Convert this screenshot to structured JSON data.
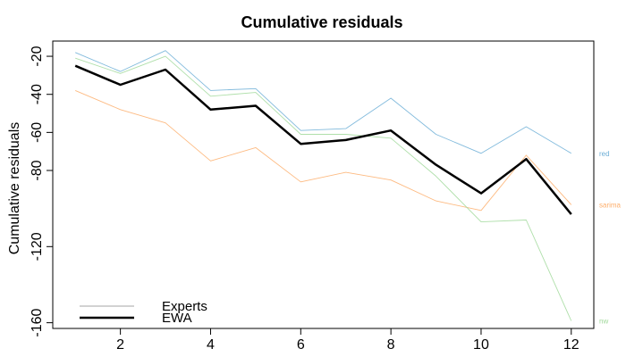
{
  "chart_data": {
    "type": "line",
    "title": "Cumulative residuals",
    "xlabel": "",
    "ylabel": "Cumulative residuals",
    "x": [
      1,
      2,
      3,
      4,
      5,
      6,
      7,
      8,
      9,
      10,
      11,
      12
    ],
    "xlim": [
      0.5,
      12.5
    ],
    "ylim": [
      -163,
      -12
    ],
    "x_ticks": [
      "2",
      "4",
      "6",
      "8",
      "10",
      "12"
    ],
    "y_ticks": [
      "-20",
      "-40",
      "-60",
      "-80",
      "-120",
      "-160"
    ],
    "grid": false,
    "legend": {
      "placement": "bottom-left",
      "entries": [
        "Experts",
        "EWA"
      ]
    },
    "series": [
      {
        "name": "red",
        "role": "expert",
        "color": "#6BAED6",
        "values": [
          -18,
          -28,
          -17,
          -38,
          -37,
          -59,
          -58,
          -42,
          -61,
          -71,
          -57,
          -71
        ]
      },
      {
        "name": "sarima",
        "role": "expert",
        "color": "#FDAE6B",
        "values": [
          -38,
          -48,
          -55,
          -75,
          -68,
          -86,
          -81,
          -85,
          -96,
          -101,
          -72,
          -98
        ]
      },
      {
        "name": "nw",
        "role": "expert",
        "color": "#A1D99B",
        "values": [
          -21,
          -29,
          -20,
          -41,
          -39,
          -61,
          -61,
          -63,
          -83,
          -107,
          -106,
          -159
        ]
      },
      {
        "name": "EWA",
        "role": "aggregate",
        "color": "#000000",
        "values": [
          -25,
          -35,
          -27,
          -48,
          -46,
          -66,
          -64,
          -59,
          -77,
          -92,
          -74,
          -103
        ]
      }
    ]
  }
}
